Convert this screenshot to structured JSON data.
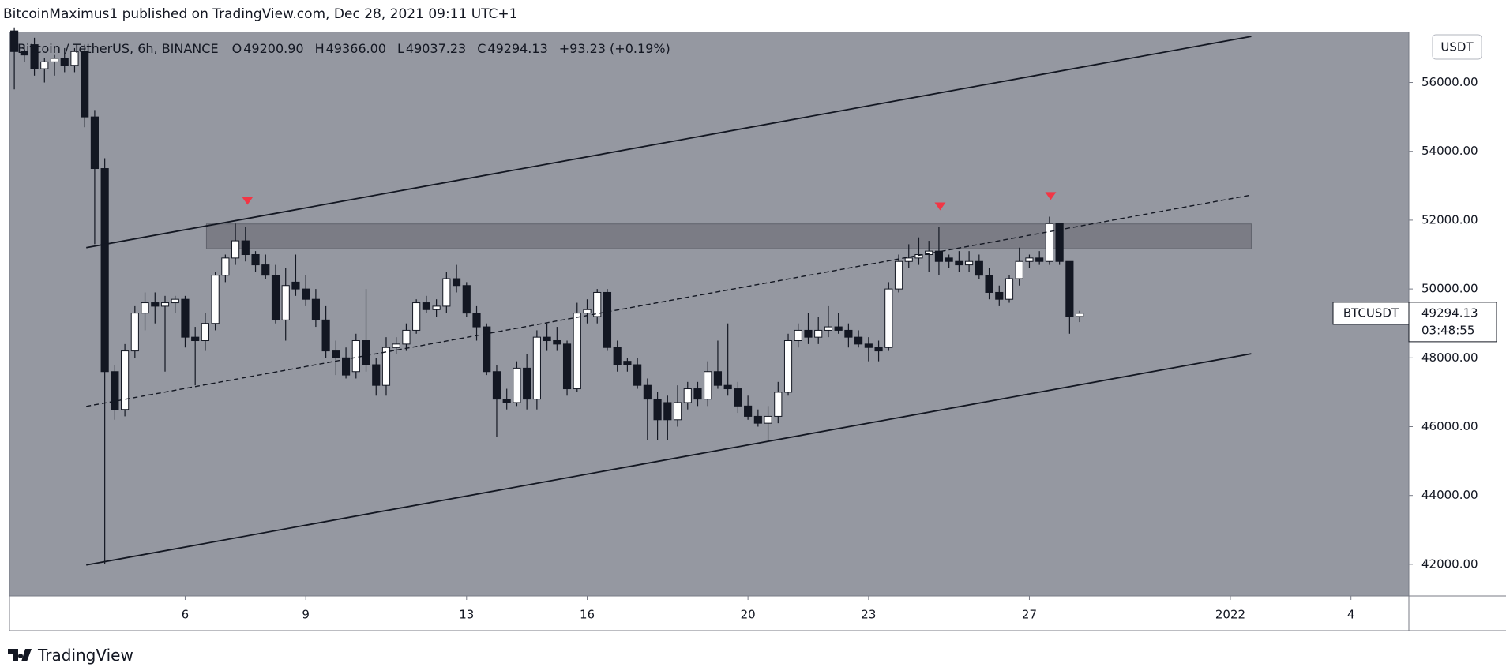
{
  "header": {
    "text": "BitcoinMaximus1 published on TradingView.com, Dec 28, 2021 09:11 UTC+1"
  },
  "chart_data": {
    "type": "candlestick",
    "symbol": "Bitcoin / TetherUS, 6h, BINANCE",
    "legend": [
      {
        "key": "O",
        "value": "49200.90"
      },
      {
        "key": "H",
        "value": "49366.00"
      },
      {
        "key": "L",
        "value": "49037.23"
      },
      {
        "key": "C",
        "value": "49294.13"
      }
    ],
    "change": "+93.23 (+0.19%)",
    "currency": "USDT",
    "x": [
      1.75,
      2,
      2.25,
      2.5,
      2.75,
      3,
      3.25,
      3.5,
      3.75,
      4,
      4.25,
      4.5,
      4.75,
      5,
      5.25,
      5.5,
      5.75,
      6,
      6.25,
      6.5,
      6.75,
      7,
      7.25,
      7.5,
      7.75,
      8,
      8.25,
      8.5,
      8.75,
      9,
      9.25,
      9.5,
      9.75,
      10,
      10.25,
      10.5,
      10.75,
      11,
      11.25,
      11.5,
      11.75,
      12,
      12.25,
      12.5,
      12.75,
      13,
      13.25,
      13.5,
      13.75,
      14,
      14.25,
      14.5,
      14.75,
      15,
      15.25,
      15.5,
      15.75,
      16,
      16.25,
      16.5,
      16.75,
      17,
      17.25,
      17.5,
      17.75,
      18,
      18.25,
      18.5,
      18.75,
      19,
      19.25,
      19.5,
      19.75,
      20,
      20.25,
      20.5,
      20.75,
      21,
      21.25,
      21.5,
      21.75,
      22,
      22.25,
      22.5,
      22.75,
      23,
      23.25,
      23.5,
      23.75,
      24,
      24.25,
      24.5,
      24.75,
      25,
      25.25,
      25.5,
      25.75,
      26,
      26.25,
      26.5,
      26.75,
      27,
      27.25,
      27.5,
      27.75,
      28,
      28.25
    ],
    "open": [
      57500,
      56900,
      57100,
      56400,
      56600,
      56700,
      56500,
      56900,
      55000,
      53500,
      47600,
      46500,
      48200,
      49300,
      49600,
      49500,
      49600,
      49700,
      48600,
      48500,
      49000,
      50400,
      50900,
      51400,
      51000,
      50700,
      50400,
      49100,
      50200,
      50000,
      49700,
      49100,
      48200,
      48000,
      47600,
      48500,
      47800,
      47200,
      48300,
      48400,
      48800,
      49600,
      49400,
      49500,
      50300,
      50100,
      49300,
      48900,
      47600,
      46800,
      46700,
      47700,
      46800,
      48600,
      48500,
      48400,
      47100,
      49300,
      49200,
      49900,
      48300,
      47900,
      47800,
      47200,
      46800,
      46700,
      46200,
      46700,
      47100,
      46800,
      47600,
      47200,
      47100,
      46600,
      46300,
      46100,
      46300,
      47000,
      48500,
      48800,
      48600,
      48800,
      48900,
      48800,
      48600,
      48400,
      48300,
      48300,
      50000,
      50800,
      50900,
      51000,
      51100,
      50900,
      50800,
      50700,
      50800,
      50400,
      49900,
      49700,
      50300,
      50800,
      50900,
      50800,
      51900,
      50800,
      49200.9
    ],
    "high": [
      57600,
      57100,
      57300,
      56700,
      56800,
      57000,
      57000,
      57100,
      55200,
      53800,
      47800,
      48400,
      49500,
      49900,
      49900,
      49800,
      49800,
      49800,
      48900,
      49300,
      50500,
      51000,
      51900,
      51800,
      51100,
      51000,
      50700,
      50600,
      51000,
      50400,
      50000,
      49500,
      48500,
      48300,
      48700,
      50000,
      48000,
      48600,
      48600,
      49000,
      49700,
      49800,
      49700,
      50500,
      50700,
      50200,
      49500,
      49000,
      47800,
      47100,
      47900,
      48100,
      48800,
      49000,
      48900,
      48500,
      49600,
      49700,
      50000,
      50000,
      48500,
      48000,
      48000,
      47400,
      47000,
      46900,
      47200,
      47300,
      47300,
      47900,
      48500,
      49000,
      47300,
      46900,
      46500,
      46600,
      47300,
      48700,
      49000,
      49300,
      49200,
      49500,
      49300,
      49000,
      48800,
      48600,
      48500,
      50200,
      51000,
      51300,
      51500,
      51400,
      51800,
      51000,
      51100,
      51100,
      51000,
      50600,
      50100,
      50400,
      51200,
      51000,
      51100,
      52100,
      51900,
      50800,
      49366
    ],
    "low": [
      55800,
      56600,
      56200,
      56000,
      56200,
      56300,
      56300,
      54700,
      51300,
      42000,
      46200,
      46300,
      48000,
      48800,
      49000,
      47600,
      49300,
      48300,
      47200,
      48200,
      48800,
      50200,
      50700,
      50800,
      50500,
      50300,
      49000,
      48500,
      49800,
      49500,
      48900,
      48000,
      47500,
      47400,
      47400,
      47600,
      46900,
      46900,
      48100,
      48200,
      48700,
      49300,
      49200,
      49300,
      49900,
      49200,
      48500,
      47500,
      45700,
      46500,
      46600,
      46500,
      46500,
      48200,
      48200,
      46900,
      47000,
      49000,
      49000,
      48200,
      47600,
      47600,
      47100,
      45600,
      45600,
      45600,
      46000,
      46500,
      46600,
      46600,
      47100,
      46900,
      46400,
      46200,
      46000,
      45600,
      46100,
      46900,
      48300,
      48400,
      48400,
      48600,
      48700,
      48300,
      48300,
      47900,
      47900,
      48200,
      49900,
      50600,
      50700,
      50500,
      50400,
      50600,
      50500,
      50500,
      50300,
      49700,
      49500,
      49600,
      50100,
      50600,
      50700,
      50700,
      50700,
      48700,
      49037.23
    ],
    "close": [
      56900,
      56800,
      56400,
      56600,
      56700,
      56500,
      56900,
      55000,
      53500,
      47600,
      46500,
      48200,
      49300,
      49600,
      49500,
      49600,
      49700,
      48600,
      48500,
      49000,
      50400,
      50900,
      51400,
      51000,
      50700,
      50400,
      49100,
      50100,
      50000,
      49700,
      49100,
      48200,
      48000,
      47500,
      48500,
      47800,
      47200,
      48300,
      48400,
      48800,
      49600,
      49400,
      49500,
      50300,
      50100,
      49300,
      48900,
      47600,
      46800,
      46700,
      47700,
      46800,
      48600,
      48500,
      48400,
      47100,
      49300,
      49400,
      49900,
      48300,
      47800,
      47800,
      47200,
      46800,
      46200,
      46200,
      46700,
      47100,
      46800,
      47600,
      47200,
      47100,
      46600,
      46300,
      46100,
      46300,
      47000,
      48500,
      48800,
      48600,
      48800,
      48900,
      48800,
      48600,
      48400,
      48300,
      48200,
      50000,
      50800,
      50900,
      51000,
      51100,
      50800,
      50800,
      50700,
      50800,
      50400,
      49900,
      49700,
      50300,
      50800,
      50900,
      50800,
      51900,
      50800,
      49200,
      49294.13
    ],
    "up_color": "#ffffff",
    "down_color": "#131722",
    "xlim": [
      1.63,
      36.44
    ],
    "xticks": [
      6,
      9,
      13,
      16,
      20,
      23,
      27,
      {
        "value": 32,
        "label": "2022"
      },
      {
        "value": 35,
        "label": "4"
      }
    ],
    "ylim": [
      41080,
      57480
    ],
    "yticks": [
      {
        "value": 42000,
        "label": "42000.00"
      },
      {
        "value": 44000,
        "label": "44000.00"
      },
      {
        "value": 46000,
        "label": "46000.00"
      },
      {
        "value": 48000,
        "label": "48000.00"
      },
      {
        "value": 50000,
        "label": "50000.00"
      },
      {
        "value": 52000,
        "label": "52000.00"
      },
      {
        "value": 54000,
        "label": "54000.00"
      },
      {
        "value": 56000,
        "label": "56000.00"
      }
    ],
    "grid": false,
    "trend_lines": [
      {
        "x": [
          3.54,
          32.52
        ],
        "y": [
          51200,
          57340
        ],
        "dashed": false
      },
      {
        "x": [
          3.54,
          32.52
        ],
        "y": [
          41980,
          48120
        ],
        "dashed": false
      },
      {
        "x": [
          3.54,
          32.52
        ],
        "y": [
          46590,
          52730
        ],
        "dashed": true
      }
    ],
    "zone": {
      "x": [
        6.53,
        32.52
      ],
      "y": [
        51170,
        51890
      ]
    },
    "markers": {
      "x": [
        7.55,
        24.78,
        27.53
      ],
      "y": [
        52560,
        52400,
        52700
      ],
      "color": "#f23645"
    },
    "price_tag": {
      "symbol": "BTCUSDT",
      "price": "49294.13",
      "countdown": "03:48:55"
    }
  },
  "footer": {
    "brand": "TradingView"
  }
}
